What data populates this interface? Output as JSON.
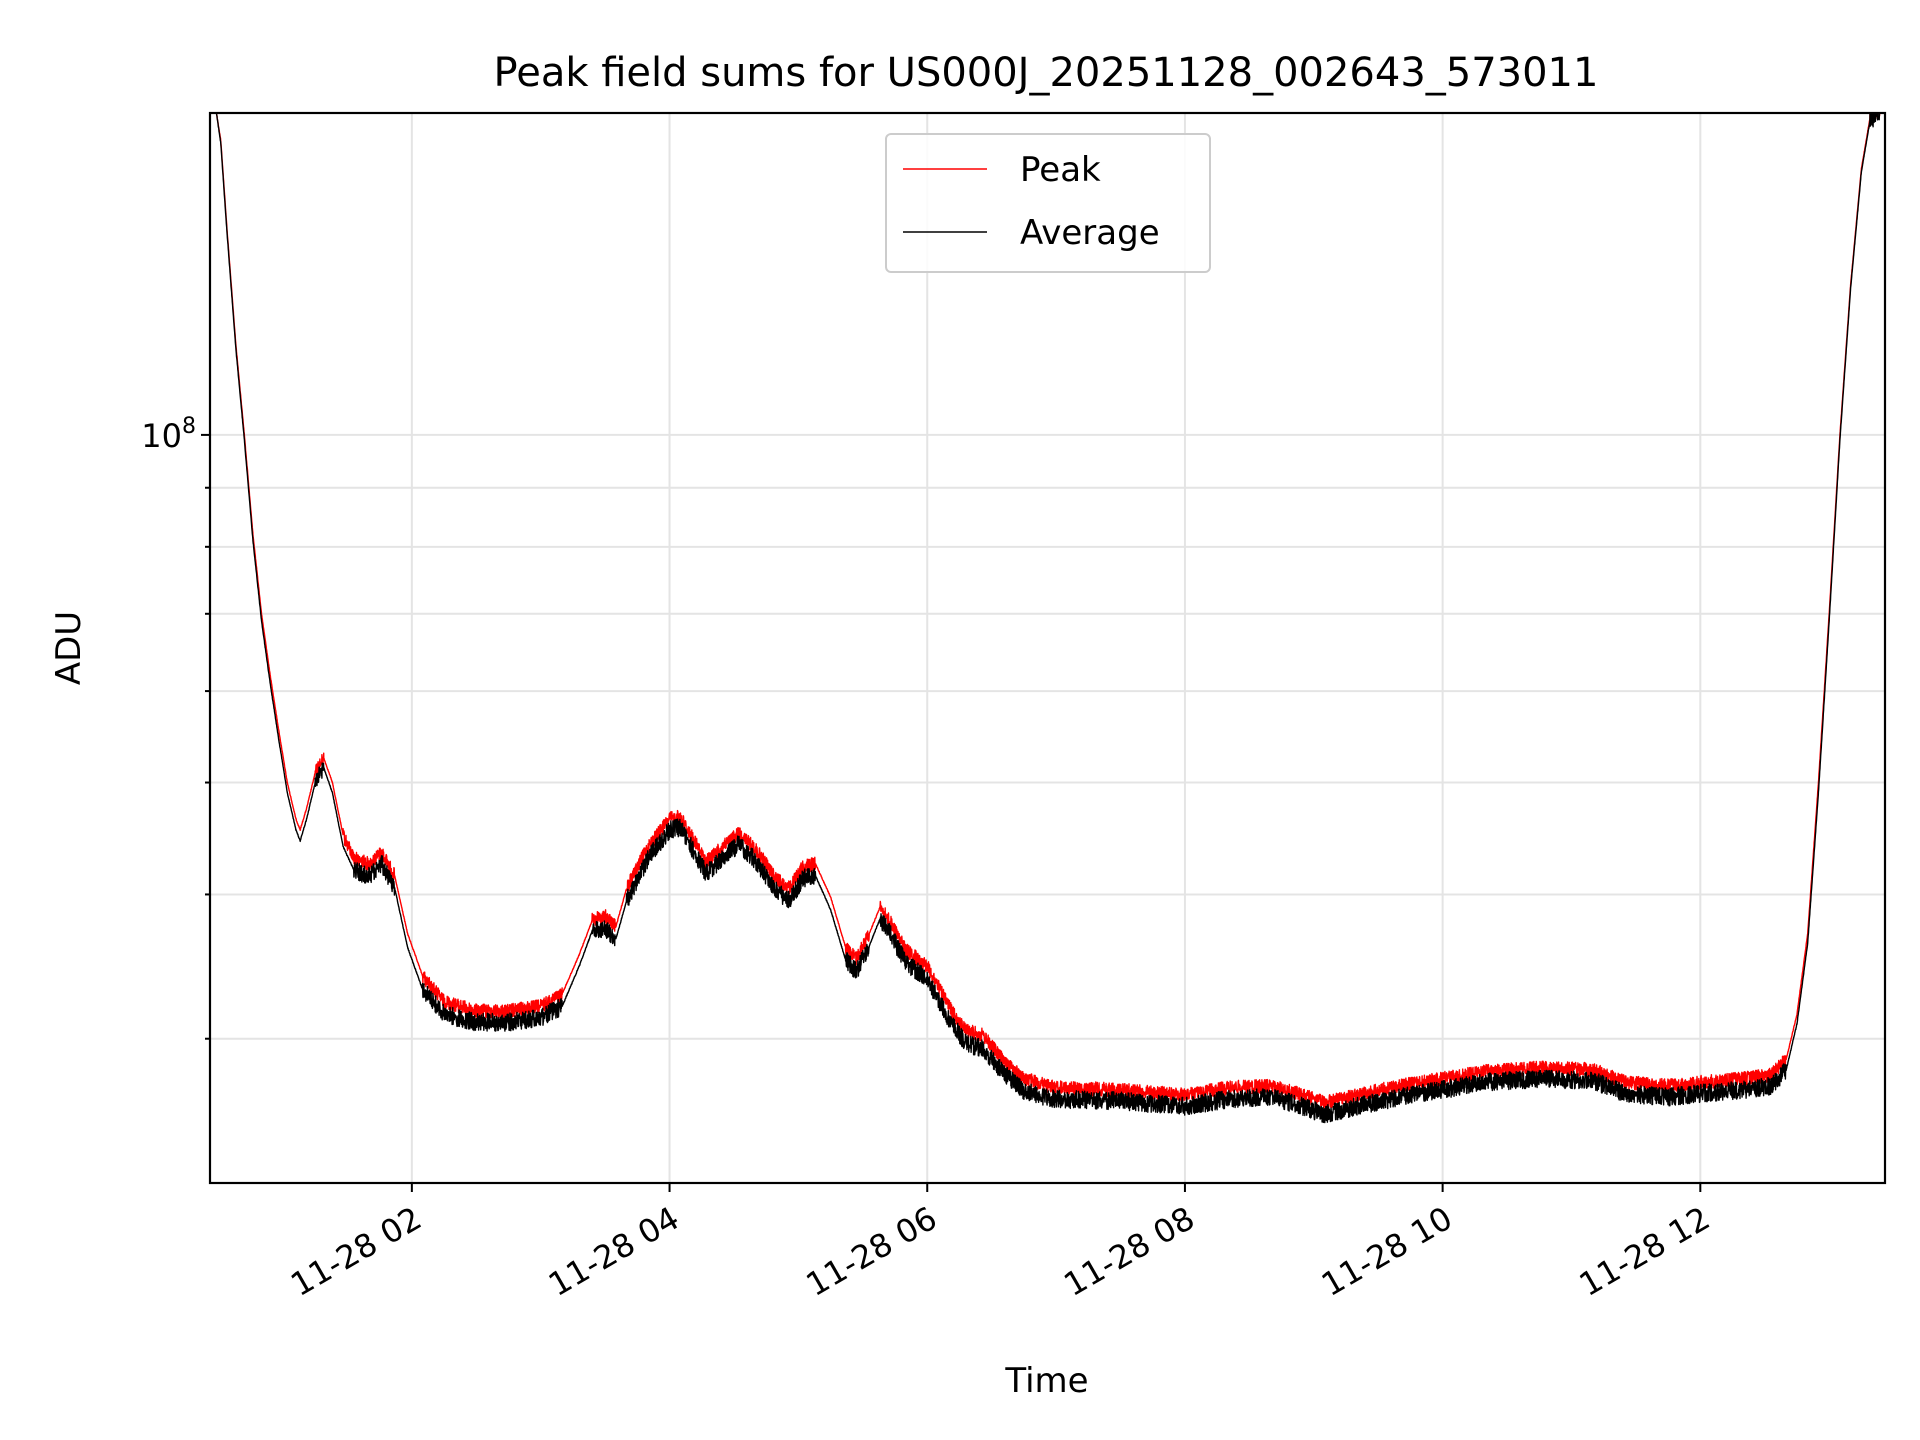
{
  "chart_data": {
    "type": "line",
    "title": "Peak field sums for US000J_20251128_002643_573011",
    "xlabel": "Time",
    "ylabel": "ADU",
    "yscale": "log",
    "grid": true,
    "legend_position": "upper-center",
    "x_ticks": [
      "11-28 02",
      "11-28 04",
      "11-28 06",
      "11-28 08",
      "11-28 10",
      "11-28 12"
    ],
    "y_ticks": [
      {
        "value": 100000000,
        "label_base": "10",
        "label_exp": "8"
      }
    ],
    "xlim": [
      "2025-11-28 00:26",
      "2025-11-28 13:26"
    ],
    "ylim": [
      22500000,
      190000000
    ],
    "series": [
      {
        "name": "Peak",
        "color": "#ff0000",
        "points": [
          [
            "00:29",
            190000000
          ],
          [
            "00:31",
            180000000
          ],
          [
            "00:34",
            150000000
          ],
          [
            "00:38",
            120000000
          ],
          [
            "00:42",
            100000000
          ],
          [
            "00:46",
            82000000
          ],
          [
            "00:50",
            70000000
          ],
          [
            "00:54",
            62000000
          ],
          [
            "00:58",
            55500000
          ],
          [
            "01:02",
            50000000
          ],
          [
            "01:06",
            46500000
          ],
          [
            "01:08",
            45500000
          ],
          [
            "01:11",
            47500000
          ],
          [
            "01:15",
            51000000
          ],
          [
            "01:19",
            52500000
          ],
          [
            "01:23",
            50000000
          ],
          [
            "01:28",
            45000000
          ],
          [
            "01:33",
            43000000
          ],
          [
            "01:40",
            42500000
          ],
          [
            "01:46",
            43500000
          ],
          [
            "01:52",
            41500000
          ],
          [
            "01:58",
            37000000
          ],
          [
            "02:05",
            34000000
          ],
          [
            "02:15",
            32300000
          ],
          [
            "02:30",
            31700000
          ],
          [
            "02:45",
            31700000
          ],
          [
            "03:00",
            32000000
          ],
          [
            "03:10",
            32800000
          ],
          [
            "03:18",
            35500000
          ],
          [
            "03:24",
            38000000
          ],
          [
            "03:30",
            38300000
          ],
          [
            "03:35",
            37500000
          ],
          [
            "03:40",
            40500000
          ],
          [
            "03:50",
            44000000
          ],
          [
            "04:00",
            46500000
          ],
          [
            "04:05",
            46700000
          ],
          [
            "04:10",
            45000000
          ],
          [
            "04:17",
            42700000
          ],
          [
            "04:25",
            44000000
          ],
          [
            "04:32",
            45200000
          ],
          [
            "04:40",
            43800000
          ],
          [
            "04:50",
            41200000
          ],
          [
            "04:56",
            40500000
          ],
          [
            "05:02",
            42300000
          ],
          [
            "05:08",
            42500000
          ],
          [
            "05:15",
            39800000
          ],
          [
            "05:22",
            36000000
          ],
          [
            "05:27",
            35200000
          ],
          [
            "05:33",
            37000000
          ],
          [
            "05:38",
            39000000
          ],
          [
            "05:43",
            37800000
          ],
          [
            "05:50",
            35800000
          ],
          [
            "06:00",
            34700000
          ],
          [
            "06:10",
            32000000
          ],
          [
            "06:18",
            30500000
          ],
          [
            "06:26",
            30200000
          ],
          [
            "06:35",
            28800000
          ],
          [
            "06:45",
            27700000
          ],
          [
            "07:00",
            27200000
          ],
          [
            "07:30",
            27100000
          ],
          [
            "08:00",
            26800000
          ],
          [
            "08:20",
            27200000
          ],
          [
            "08:40",
            27300000
          ],
          [
            "08:55",
            26800000
          ],
          [
            "09:05",
            26400000
          ],
          [
            "09:20",
            26800000
          ],
          [
            "09:40",
            27300000
          ],
          [
            "10:00",
            27700000
          ],
          [
            "10:20",
            28100000
          ],
          [
            "10:45",
            28300000
          ],
          [
            "11:10",
            28200000
          ],
          [
            "11:25",
            27500000
          ],
          [
            "11:45",
            27300000
          ],
          [
            "12:00",
            27500000
          ],
          [
            "12:20",
            27700000
          ],
          [
            "12:33",
            27900000
          ],
          [
            "12:40",
            28800000
          ],
          [
            "12:45",
            31500000
          ],
          [
            "12:50",
            37000000
          ],
          [
            "12:55",
            50000000
          ],
          [
            "13:00",
            70000000
          ],
          [
            "13:05",
            100000000
          ],
          [
            "13:10",
            135000000
          ],
          [
            "13:15",
            170000000
          ],
          [
            "13:19",
            188000000
          ],
          [
            "13:24",
            192000000
          ]
        ]
      },
      {
        "name": "Average",
        "color": "#000000",
        "points": [
          [
            "00:29",
            190000000
          ],
          [
            "00:31",
            179000000
          ],
          [
            "00:34",
            149000000
          ],
          [
            "00:38",
            119000000
          ],
          [
            "00:42",
            99000000
          ],
          [
            "00:46",
            81000000
          ],
          [
            "00:50",
            69000000
          ],
          [
            "00:54",
            61000000
          ],
          [
            "00:58",
            54500000
          ],
          [
            "01:02",
            49000000
          ],
          [
            "01:06",
            45500000
          ],
          [
            "01:08",
            44500000
          ],
          [
            "01:11",
            46500000
          ],
          [
            "01:15",
            50000000
          ],
          [
            "01:19",
            51500000
          ],
          [
            "01:23",
            49000000
          ],
          [
            "01:28",
            44000000
          ],
          [
            "01:33",
            42000000
          ],
          [
            "01:40",
            41500000
          ],
          [
            "01:46",
            42500000
          ],
          [
            "01:52",
            40500000
          ],
          [
            "01:58",
            36000000
          ],
          [
            "02:05",
            33100000
          ],
          [
            "02:15",
            31500000
          ],
          [
            "02:30",
            31000000
          ],
          [
            "02:45",
            31000000
          ],
          [
            "03:00",
            31300000
          ],
          [
            "03:10",
            32000000
          ],
          [
            "03:18",
            34700000
          ],
          [
            "03:24",
            37200000
          ],
          [
            "03:30",
            37400000
          ],
          [
            "03:35",
            36600000
          ],
          [
            "03:40",
            39500000
          ],
          [
            "03:50",
            43000000
          ],
          [
            "04:00",
            45500000
          ],
          [
            "04:05",
            45700000
          ],
          [
            "04:10",
            44000000
          ],
          [
            "04:17",
            41700000
          ],
          [
            "04:25",
            43000000
          ],
          [
            "04:32",
            44200000
          ],
          [
            "04:40",
            42800000
          ],
          [
            "04:50",
            40200000
          ],
          [
            "04:56",
            39500000
          ],
          [
            "05:02",
            41300000
          ],
          [
            "05:08",
            41500000
          ],
          [
            "05:15",
            38800000
          ],
          [
            "05:22",
            35100000
          ],
          [
            "05:27",
            34300000
          ],
          [
            "05:33",
            36100000
          ],
          [
            "05:38",
            38100000
          ],
          [
            "05:43",
            36900000
          ],
          [
            "05:50",
            34900000
          ],
          [
            "06:00",
            33800000
          ],
          [
            "06:10",
            31200000
          ],
          [
            "06:18",
            29700000
          ],
          [
            "06:26",
            29400000
          ],
          [
            "06:35",
            28100000
          ],
          [
            "06:45",
            27000000
          ],
          [
            "07:00",
            26600000
          ],
          [
            "07:30",
            26500000
          ],
          [
            "08:00",
            26200000
          ],
          [
            "08:20",
            26600000
          ],
          [
            "08:40",
            26700000
          ],
          [
            "08:55",
            26200000
          ],
          [
            "09:05",
            25800000
          ],
          [
            "09:20",
            26200000
          ],
          [
            "09:40",
            26700000
          ],
          [
            "10:00",
            27100000
          ],
          [
            "10:20",
            27500000
          ],
          [
            "10:45",
            27700000
          ],
          [
            "11:10",
            27600000
          ],
          [
            "11:25",
            26900000
          ],
          [
            "11:45",
            26700000
          ],
          [
            "12:00",
            26900000
          ],
          [
            "12:20",
            27100000
          ],
          [
            "12:33",
            27300000
          ],
          [
            "12:40",
            28200000
          ],
          [
            "12:45",
            30900000
          ],
          [
            "12:50",
            36300000
          ],
          [
            "12:55",
            49000000
          ],
          [
            "13:00",
            69000000
          ],
          [
            "13:05",
            99000000
          ],
          [
            "13:10",
            134000000
          ],
          [
            "13:15",
            169000000
          ],
          [
            "13:19",
            187000000
          ],
          [
            "13:24",
            191000000
          ]
        ]
      }
    ]
  }
}
